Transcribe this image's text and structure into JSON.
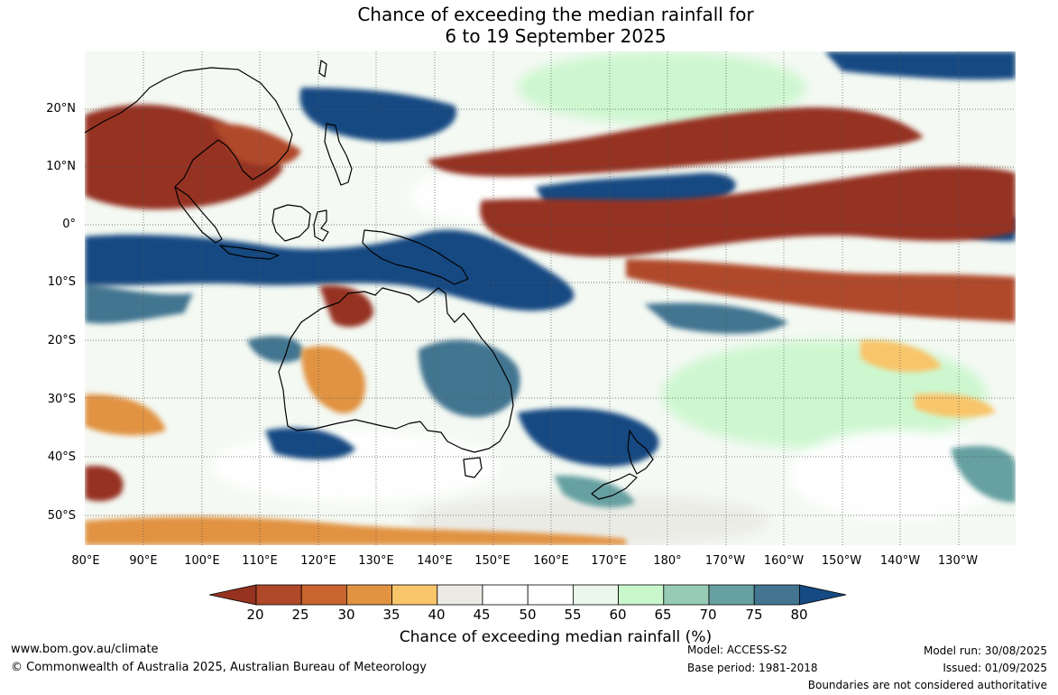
{
  "title": {
    "line1": "Chance of exceeding the median rainfall for",
    "line2": "6 to 19 September 2025"
  },
  "map": {
    "lat_labels": [
      "20°N",
      "10°N",
      "0°",
      "10°S",
      "20°S",
      "30°S",
      "40°S",
      "50°S"
    ],
    "lon_labels": [
      "80°E",
      "90°E",
      "100°E",
      "110°E",
      "120°E",
      "130°E",
      "140°E",
      "150°E",
      "160°E",
      "170°E",
      "180°",
      "170°W",
      "160°W",
      "150°W",
      "140°W",
      "130°W"
    ]
  },
  "colorbar": {
    "ticks": [
      "20",
      "25",
      "30",
      "35",
      "40",
      "45",
      "50",
      "55",
      "60",
      "65",
      "70",
      "75",
      "80"
    ],
    "colors": [
      "#953220",
      "#b0482a",
      "#c9632f",
      "#e19342",
      "#f9c56a",
      "#ebeae5",
      "#ffffff",
      "#ffffff",
      "#eaf7ea",
      "#c9f7cc",
      "#97cbb5",
      "#66a0a1",
      "#437590",
      "#154a82"
    ],
    "label": "Chance of exceeding median rainfall (%)"
  },
  "footer": {
    "website": "www.bom.gov.au/climate",
    "copyright": "© Commonwealth of Australia 2025, Australian Bureau of Meteorology",
    "model": "Model: ACCESS-S2",
    "base_period": "Base period: 1981-2018",
    "model_run": "Model run: 30/08/2025",
    "issued": "Issued: 01/09/2025",
    "disclaimer": "Boundaries are not considered authoritative"
  }
}
